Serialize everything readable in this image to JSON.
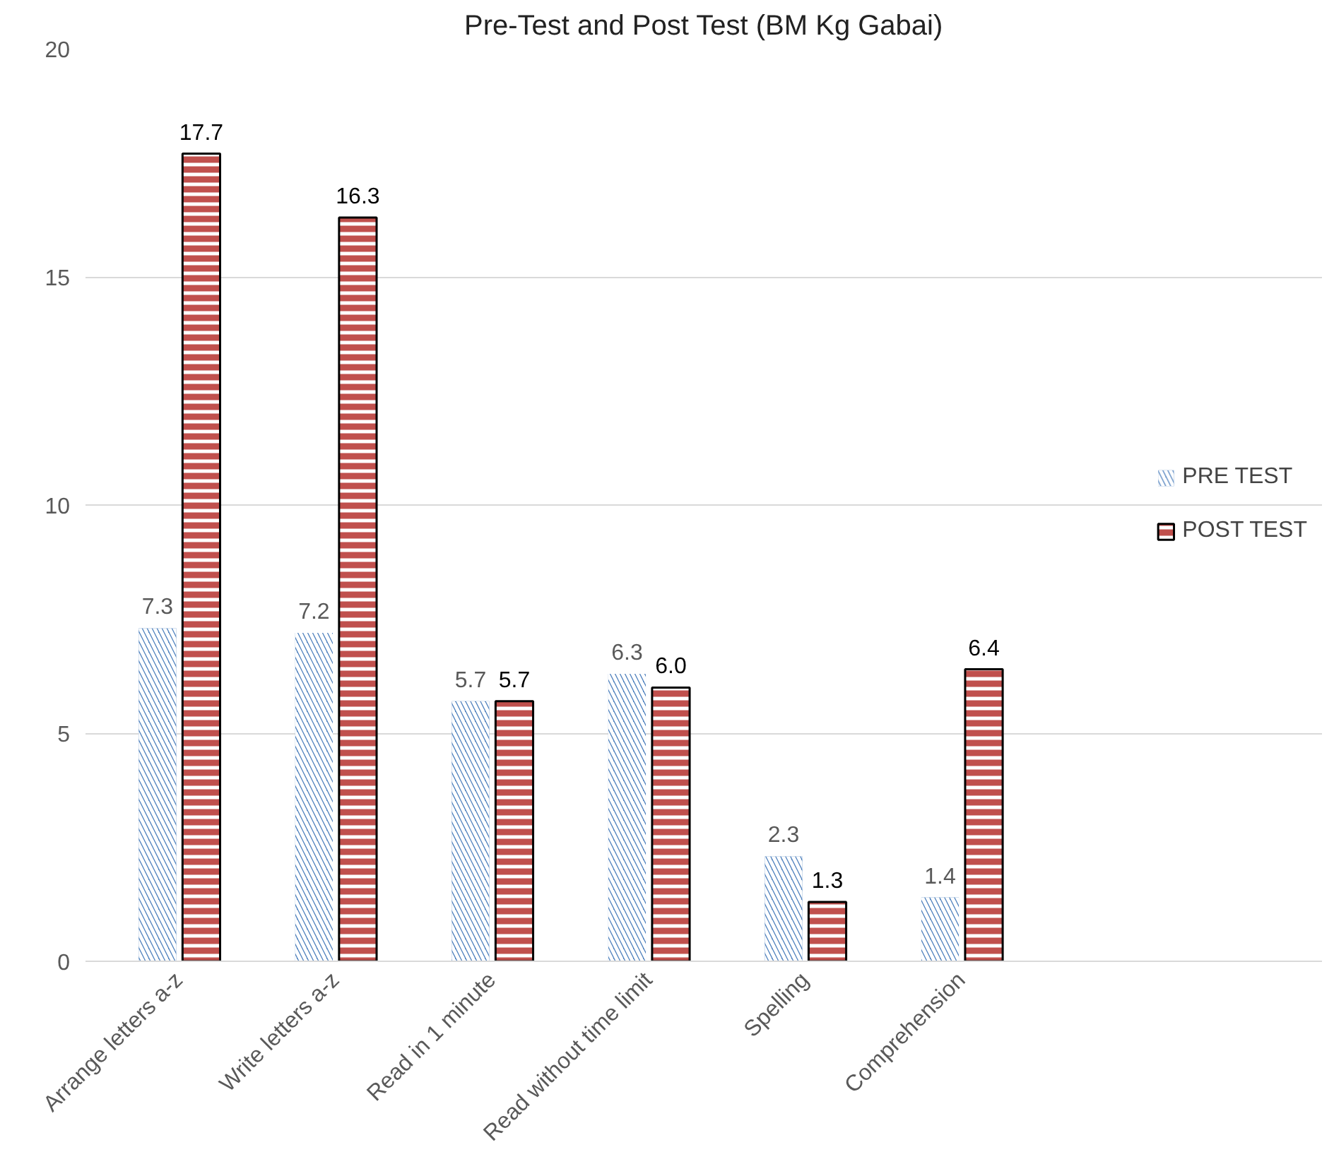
{
  "chart_data": {
    "type": "bar",
    "title": "Pre-Test and Post Test (BM Kg Gabai)",
    "categories": [
      "Arrange letters a-z",
      "Write letters a-z",
      "Read in 1 minute",
      "Read without time limit",
      "Spelling",
      "Comprehension"
    ],
    "series": [
      {
        "name": "PRE TEST",
        "color": "#4f81bd",
        "values": [
          7.3,
          7.2,
          5.7,
          6.3,
          2.3,
          1.4
        ],
        "value_labels": [
          "7.3",
          "7.2",
          "5.7",
          "6.3",
          "2.3",
          "1.4"
        ]
      },
      {
        "name": "POST TEST",
        "color": "#c0504d",
        "values": [
          17.7,
          16.3,
          5.7,
          6.0,
          1.3,
          6.4
        ],
        "value_labels": [
          "17.7",
          "16.3",
          "5.7",
          "6.0",
          "1.3",
          "6.4"
        ]
      }
    ],
    "ylim": [
      0,
      20
    ],
    "yticks": [
      0,
      5,
      10,
      15,
      20
    ],
    "grid": "y",
    "legend": "right"
  }
}
